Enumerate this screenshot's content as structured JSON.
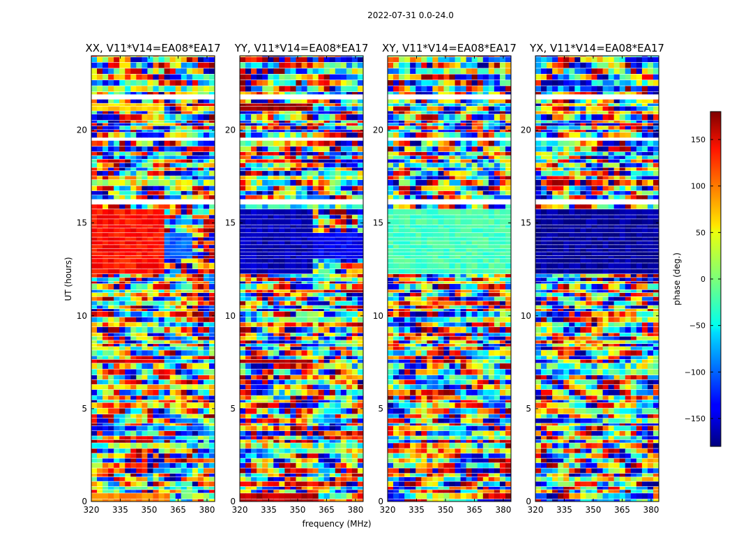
{
  "chart_data": {
    "type": "heatmap",
    "suptitle": "2022-07-31 0.0-24.0",
    "xlabel": "frequency (MHz)",
    "ylabel": "UT (hours)",
    "xlim": [
      320,
      384
    ],
    "ylim": [
      0,
      24
    ],
    "xticks": [
      320,
      335,
      350,
      365,
      380
    ],
    "yticks": [
      0,
      5,
      10,
      15,
      20
    ],
    "colorbar": {
      "label": "phase (deg.)",
      "range": [
        -180,
        180
      ],
      "ticks": [
        150,
        100,
        50,
        0,
        -50,
        -100,
        -150
      ],
      "tick_labels": [
        "150",
        "100",
        "50",
        "0",
        "−50",
        "−100",
        "−150"
      ],
      "colormap": "jet"
    },
    "panels": [
      {
        "title": "XX, V11*V14=EA08*EA17",
        "coherent_regions": [
          {
            "ut": [
              21.0,
              21.5
            ],
            "freq": [
              320,
              359
            ],
            "phase": 60
          },
          {
            "ut": [
              12.3,
              15.8
            ],
            "freq": [
              320,
              359
            ],
            "phase": 130
          },
          {
            "ut": [
              13.0,
              14.5
            ],
            "freq": [
              359,
              372
            ],
            "phase": -100
          },
          {
            "ut": [
              7.4,
              7.7
            ],
            "freq": [
              320,
              358
            ],
            "phase": 150
          },
          {
            "ut": [
              0.0,
              0.3
            ],
            "freq": [
              320,
              362
            ],
            "phase": 90
          }
        ]
      },
      {
        "title": "YY, V11*V14=EA08*EA17",
        "coherent_regions": [
          {
            "ut": [
              21.0,
              21.5
            ],
            "freq": [
              320,
              359
            ],
            "phase": 170
          },
          {
            "ut": [
              12.3,
              15.8
            ],
            "freq": [
              320,
              359
            ],
            "phase": -160
          },
          {
            "ut": [
              13.0,
              14.5
            ],
            "freq": [
              359,
              384
            ],
            "phase": -140
          },
          {
            "ut": [
              7.4,
              7.7
            ],
            "freq": [
              320,
              358
            ],
            "phase": 165
          },
          {
            "ut": [
              0.0,
              0.3
            ],
            "freq": [
              320,
              362
            ],
            "phase": 160
          }
        ]
      },
      {
        "title": "XY, V11*V14=EA08*EA17",
        "coherent_regions": [
          {
            "ut": [
              12.3,
              15.8
            ],
            "freq": [
              320,
              384
            ],
            "phase": -20
          }
        ]
      },
      {
        "title": "YX, V11*V14=EA08*EA17",
        "coherent_regions": [
          {
            "ut": [
              12.3,
              15.8
            ],
            "freq": [
              320,
              384
            ],
            "phase": -170
          }
        ]
      }
    ]
  }
}
